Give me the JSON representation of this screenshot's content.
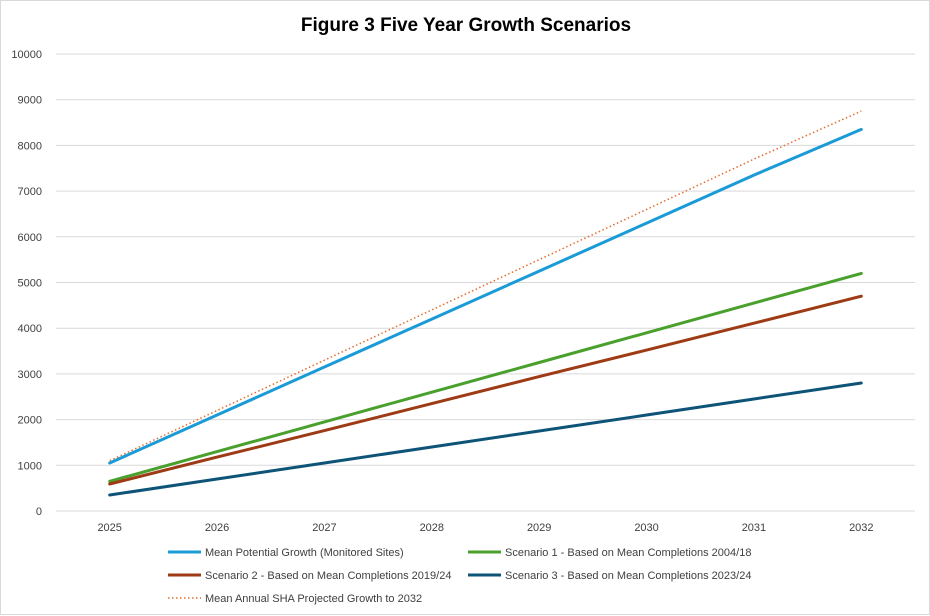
{
  "chart_data": {
    "type": "line",
    "title": "Figure 3 Five Year Growth Scenarios",
    "xlabel": "",
    "ylabel": "",
    "x": [
      "2025",
      "2026",
      "2027",
      "2028",
      "2029",
      "2030",
      "2031",
      "2032"
    ],
    "ylim": [
      0,
      10000
    ],
    "yticks": [
      0,
      1000,
      2000,
      3000,
      4000,
      5000,
      6000,
      7000,
      8000,
      9000,
      10000
    ],
    "grid": true,
    "legend_position": "bottom",
    "series": [
      {
        "name": "Mean Potential Growth (Monitored Sites)",
        "color": "#1a9bd7",
        "style": "solid",
        "values": [
          1050,
          2100,
          3150,
          4200,
          5250,
          6300,
          7350,
          8350
        ]
      },
      {
        "name": "Scenario 1 - Based on Mean Completions 2004/18",
        "color": "#4aa02c",
        "style": "solid",
        "values": [
          650,
          1300,
          1950,
          2600,
          3250,
          3900,
          4550,
          5200
        ]
      },
      {
        "name": "Scenario 2 - Based on Mean Completions 2019/24",
        "color": "#9e3a14",
        "style": "solid",
        "values": [
          590,
          1180,
          1760,
          2350,
          2940,
          3520,
          4110,
          4700
        ]
      },
      {
        "name": "Scenario 3 - Based on Mean Completions 2023/24",
        "color": "#0d5478",
        "style": "solid",
        "values": [
          350,
          700,
          1050,
          1400,
          1750,
          2100,
          2450,
          2800
        ]
      },
      {
        "name": "Mean Annual SHA Projected Growth to 2032",
        "color": "#e46c2c",
        "style": "dotted",
        "values": [
          1100,
          2200,
          3300,
          4400,
          5500,
          6600,
          7700,
          8750
        ]
      }
    ]
  }
}
